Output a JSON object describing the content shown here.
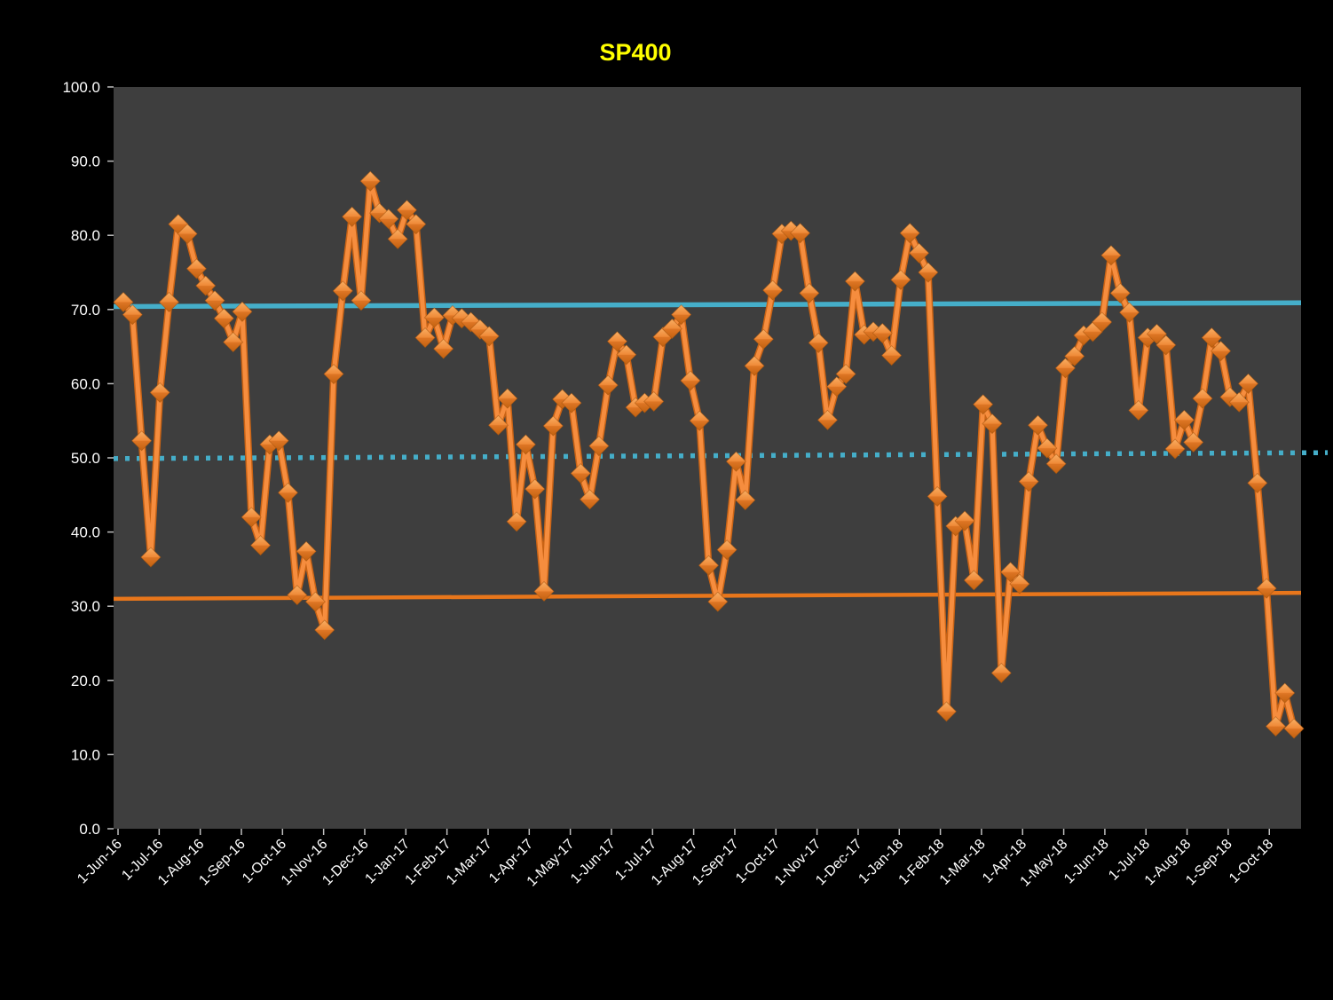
{
  "window": {
    "background_color": "#000000",
    "plot_background_color": "#3E3E3E",
    "axis_text_color": "#FFFFFF",
    "tick_color": "#BFBFBF"
  },
  "chart_data": {
    "type": "line",
    "title": "SP400",
    "title_color": "#FFFF00",
    "legend": "none",
    "grid": "off",
    "x_axis": {
      "start_date": "2016-06-01",
      "frequency": "weekly",
      "tick_labels": [
        "1-Jun-16",
        "1-Jul-16",
        "1-Aug-16",
        "1-Sep-16",
        "1-Oct-16",
        "1-Nov-16",
        "1-Dec-16",
        "1-Jan-17",
        "1-Feb-17",
        "1-Mar-17",
        "1-Apr-17",
        "1-May-17",
        "1-Jun-17",
        "1-Jul-17",
        "1-Aug-17",
        "1-Sep-17",
        "1-Oct-17",
        "1-Nov-17",
        "1-Dec-17",
        "1-Jan-18",
        "1-Feb-18",
        "1-Mar-18",
        "1-Apr-18",
        "1-May-18",
        "1-Jun-18",
        "1-Jul-18",
        "1-Aug-18",
        "1-Sep-18",
        "1-Oct-18"
      ]
    },
    "y_axis": {
      "range": [
        0,
        100
      ],
      "step": 10,
      "tick_labels": [
        "100.0",
        "90.0",
        "80.0",
        "70.0",
        "60.0",
        "50.0",
        "40.0",
        "30.0",
        "20.0",
        "10.0",
        "0.0"
      ]
    },
    "series": [
      {
        "name": "SP400",
        "color": "#ED7D31",
        "marker": "diamond",
        "marker_highlight": "#F9AE63",
        "marker_shadow": "#C2610F",
        "values": [
          71.0,
          69.3,
          52.3,
          36.6,
          58.8,
          71.0,
          81.5,
          80.2,
          75.5,
          73.2,
          71.2,
          68.8,
          65.6,
          69.7,
          42.0,
          38.2,
          51.8,
          52.3,
          45.3,
          31.5,
          37.4,
          30.6,
          26.8,
          61.3,
          72.5,
          82.5,
          71.2,
          87.3,
          83.0,
          82.2,
          79.5,
          83.4,
          81.5,
          66.2,
          68.9,
          64.7,
          69.2,
          68.8,
          68.3,
          67.3,
          66.4,
          54.4,
          58.0,
          41.4,
          51.8,
          45.8,
          32.0,
          54.3,
          57.9,
          57.4,
          47.9,
          44.4,
          51.6,
          59.8,
          65.7,
          63.9,
          56.8,
          57.4,
          57.6,
          66.3,
          67.4,
          69.3,
          60.4,
          55.0,
          35.5,
          30.6,
          37.6,
          49.5,
          44.3,
          62.4,
          66.0,
          72.6,
          80.2,
          80.6,
          80.3,
          72.2,
          65.5,
          55.1,
          59.6,
          61.3,
          73.8,
          66.6,
          67.0,
          66.8,
          63.8,
          74.0,
          80.3,
          77.6,
          75.0,
          44.8,
          15.8,
          40.8,
          41.5,
          33.5,
          57.2,
          54.6,
          21.0,
          34.6,
          33.0,
          46.8,
          54.4,
          51.3,
          49.2,
          62.1,
          63.7,
          66.5,
          67.0,
          68.3,
          77.3,
          72.2,
          69.6,
          56.4,
          66.2,
          66.7,
          65.2,
          51.2,
          55.1,
          52.1,
          58.0,
          66.2,
          64.4,
          58.2,
          57.5,
          60.0,
          46.6,
          32.4,
          13.8,
          18.3,
          13.5
        ]
      }
    ],
    "reference_lines": [
      {
        "name": "upper-line",
        "style": "solid",
        "color": "#45AEC9",
        "start_value": 70.4,
        "end_value": 70.9,
        "width": 5.5
      },
      {
        "name": "middle-line",
        "style": "dotted",
        "color": "#45AEC9",
        "start_value": 49.9,
        "end_value": 50.7,
        "width": 5.5
      },
      {
        "name": "lower-line",
        "style": "solid",
        "color": "#E8761B",
        "start_value": 31.0,
        "end_value": 31.8,
        "width": 4.5
      }
    ]
  }
}
